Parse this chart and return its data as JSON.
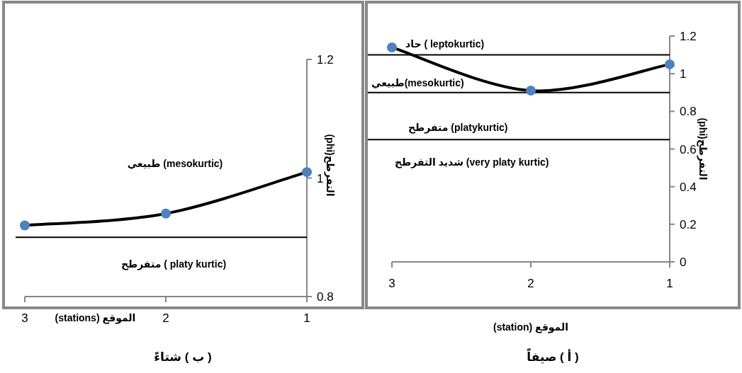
{
  "chart_data": [
    {
      "type": "line",
      "title": "( ب ) شتاءً",
      "xlabel": "الموقع (stations)",
      "ylabel": "التفرطح(phi)",
      "categories": [
        "3",
        "2",
        "1"
      ],
      "marker": "circle",
      "series": [
        {
          "color": "#4f81bd",
          "values": [
            0.92,
            0.94,
            1.01
          ]
        }
      ],
      "ylim": [
        0.8,
        1.2
      ],
      "yticks": [
        0.8,
        1,
        1.2
      ],
      "ref_lines": [
        {
          "axis": "y",
          "value": 0.9,
          "color": "#000000"
        }
      ],
      "annotations": [
        "طبيعي  (mesokurtic)",
        "متفرطح ( platy kurtic)"
      ]
    },
    {
      "type": "line",
      "title": "( أ ) صيفاً",
      "xlabel": "الموقع  (station)",
      "ylabel": "التفرطح(phi)",
      "categories": [
        "3",
        "2",
        "1"
      ],
      "marker": "circle",
      "series": [
        {
          "color": "#4f81bd",
          "values": [
            1.14,
            0.91,
            1.05
          ]
        }
      ],
      "ylim": [
        0,
        1.2
      ],
      "yticks": [
        0,
        0.2,
        0.4,
        0.6,
        0.8,
        1,
        1.2
      ],
      "ref_lines": [
        {
          "axis": "y",
          "value": 1.1,
          "color": "#000000"
        },
        {
          "axis": "y",
          "value": 0.9,
          "color": "#000000"
        },
        {
          "axis": "y",
          "value": 0.65,
          "color": "#000000"
        }
      ],
      "annotations": [
        "حاد ( leptokurtic)",
        "طبيعي(mesokurtic)",
        "متفرطح (platykurtic)",
        "شديد التفرطح (very platy kurtic)"
      ]
    }
  ]
}
